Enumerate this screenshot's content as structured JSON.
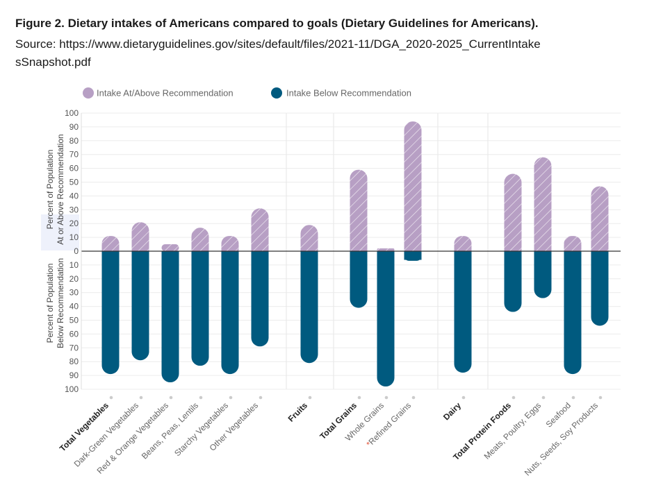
{
  "figure": {
    "title": "Figure 2.  Dietary intakes of Americans compared to goals (Dietary Guidelines for Americans).",
    "source": "Source: https://www.dietaryguidelines.gov/sites/default/files/2021-11/DGA_2020-2025_CurrentIntakesSnapshot.pdf"
  },
  "chart_data": {
    "type": "bar",
    "categories": [
      "Total Vegetables",
      "Dark-Green Vegetables",
      "Red & Orange Vegetables",
      "Beans, Peas, Lentils",
      "Starchy Vegetables",
      "Other Vegetables",
      "Fruits",
      "Total Grains",
      "Whole Grains",
      "Refined Grains",
      "Dairy",
      "Total Protein Foods",
      "Meats, Poultry, Eggs",
      "Seafood",
      "Nuts, Seeds, Soy Products"
    ],
    "bold_categories": [
      "Total Vegetables",
      "Fruits",
      "Total Grains",
      "Dairy",
      "Total Protein Foods"
    ],
    "category_groups": [
      [
        "Total Vegetables",
        "Dark-Green Vegetables",
        "Red & Orange Vegetables",
        "Beans, Peas, Lentils",
        "Starchy Vegetables",
        "Other Vegetables"
      ],
      [
        "Fruits"
      ],
      [
        "Total Grains",
        "Whole Grains",
        "Refined Grains"
      ],
      [
        "Dairy"
      ],
      [
        "Total Protein Foods",
        "Meats, Poultry, Eggs",
        "Seafood",
        "Nuts, Seeds, Soy Products"
      ]
    ],
    "asterisk_category": "Refined Grains",
    "asterisk_symbol": "*",
    "series": [
      {
        "name": "Intake At/Above Recommendation",
        "values": [
          11,
          21,
          5,
          17,
          11,
          31,
          19,
          59,
          2,
          94,
          11,
          56,
          68,
          11,
          47
        ],
        "color": "#b79fc4"
      },
      {
        "name": "Intake Below Recommendation",
        "values": [
          89,
          79,
          95,
          83,
          89,
          69,
          81,
          41,
          98,
          7,
          88,
          44,
          34,
          89,
          54
        ],
        "color": "#005a7f"
      }
    ],
    "ylabel_top": [
      "Percent of Population",
      "At or Above Recommendation"
    ],
    "ylabel_bottom": [
      "Percent of Population",
      "Below Recommendation"
    ],
    "yticks_top": [
      100,
      90,
      80,
      70,
      60,
      50,
      40,
      30,
      20,
      10,
      0
    ],
    "yticks_bottom": [
      10,
      20,
      30,
      40,
      50,
      60,
      70,
      80,
      90,
      100
    ],
    "ylim": [
      -100,
      100
    ],
    "grid": true,
    "legend_position": "top-left"
  }
}
